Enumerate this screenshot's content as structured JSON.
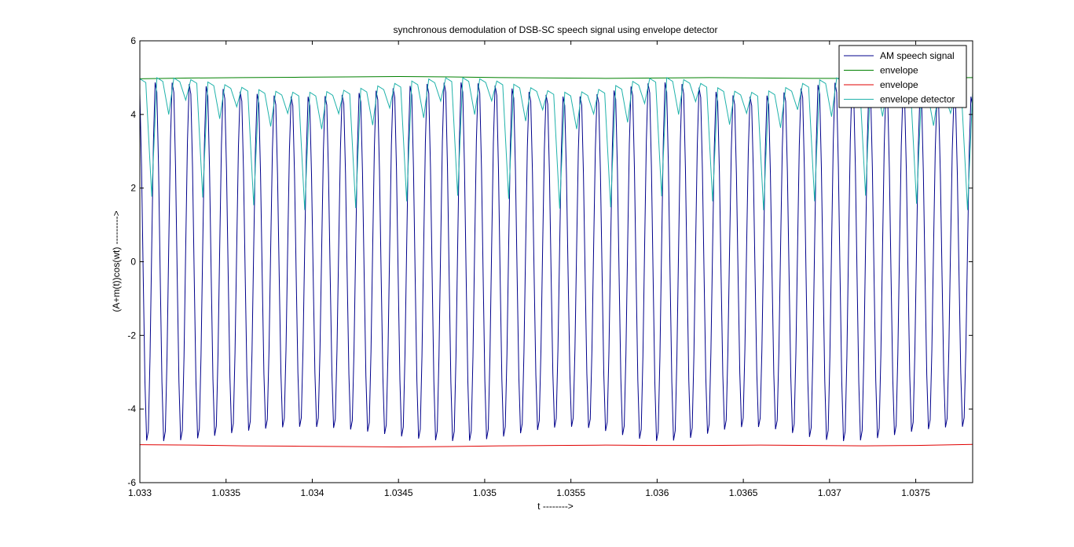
{
  "figure": {
    "background": "#ffffff"
  },
  "chart_data": {
    "type": "line",
    "title": "synchronous demodulation of DSB-SC speech signal using envelope detector",
    "xlabel": "t -------->",
    "ylabel": "(A+m(t))cos(wt) --------->",
    "xlim": [
      1.033,
      1.03783
    ],
    "ylim": [
      -6,
      6
    ],
    "xticks": [
      1.033,
      1.0335,
      1.034,
      1.0345,
      1.035,
      1.0355,
      1.036,
      1.0365,
      1.037,
      1.0375
    ],
    "xtick_labels": [
      "1.033",
      "1.0335",
      "1.034",
      "1.0345",
      "1.035",
      "1.0355",
      "1.036",
      "1.0365",
      "1.037",
      "1.0375"
    ],
    "yticks": [
      -6,
      -4,
      -2,
      0,
      2,
      4,
      6
    ],
    "ytick_labels": [
      "-6",
      "-4",
      "-2",
      "0",
      "2",
      "4",
      "6"
    ],
    "grid": false,
    "legend_position": "top-right",
    "series": [
      {
        "name": "AM speech signal",
        "color": "#00008b",
        "carrier_cycles": 49,
        "amplitude_range": [
          4.6,
          5.0
        ],
        "description_only_for_drawing": "dense oscillating carrier between about -5 and +5"
      },
      {
        "name": "envelope",
        "color": "#008000",
        "x": [
          1.033,
          1.0333,
          1.0336,
          1.0339,
          1.0342,
          1.0345,
          1.0348,
          1.0351,
          1.0354,
          1.0357,
          1.036,
          1.0363,
          1.0366,
          1.0369,
          1.0372,
          1.0375,
          1.03783
        ],
        "values": [
          4.97,
          4.99,
          5.0,
          5.01,
          5.02,
          5.03,
          5.02,
          5.0,
          4.99,
          4.98,
          4.99,
          5.0,
          4.99,
          4.98,
          4.98,
          4.99,
          5.0
        ]
      },
      {
        "name": "envelope",
        "color": "#e00000",
        "x": [
          1.033,
          1.0333,
          1.0336,
          1.0339,
          1.0342,
          1.0345,
          1.0348,
          1.0351,
          1.0354,
          1.0357,
          1.036,
          1.0363,
          1.0366,
          1.0369,
          1.0372,
          1.0375,
          1.03783
        ],
        "values": [
          -4.97,
          -4.98,
          -5.0,
          -5.01,
          -5.02,
          -5.03,
          -5.02,
          -5.0,
          -4.99,
          -4.98,
          -4.99,
          -4.99,
          -4.98,
          -4.99,
          -5.0,
          -4.99,
          -4.96
        ]
      },
      {
        "name": "envelope detector",
        "color": "#20b2aa",
        "description_only_for_drawing": "follows carrier peaks near +4 to +5 with periodic dips"
      }
    ]
  }
}
